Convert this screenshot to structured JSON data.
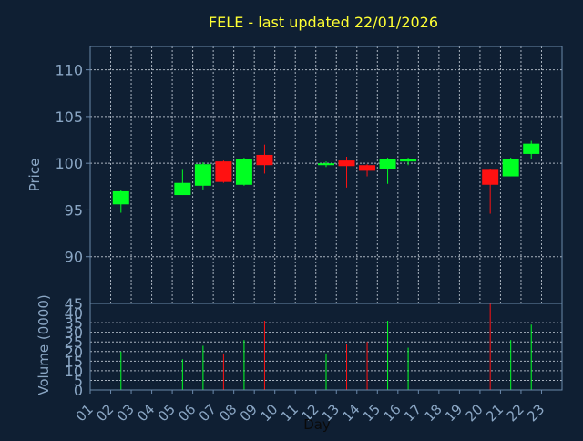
{
  "title": "FELE - last updated 22/01/2026",
  "colors": {
    "background": "#0f1f33",
    "axis": "#6a88aa",
    "text": "#8aa6c4",
    "title": "#ffff33",
    "grid": "#aab4c0",
    "up": "#00ff22",
    "down": "#ff1111",
    "day_label": "#0a0a0a"
  },
  "chart_data": [
    {
      "type": "candlestick",
      "ylabel": "Price",
      "ylim": [
        85,
        112.5
      ],
      "yticks": [
        90,
        95,
        100,
        105,
        110
      ],
      "grid": true,
      "x": [
        "02",
        "05",
        "06",
        "07",
        "08",
        "09",
        "12",
        "13",
        "14",
        "15",
        "16",
        "20",
        "21",
        "22"
      ],
      "candles": [
        {
          "day": "02",
          "open": 95.6,
          "high": 97.1,
          "low": 94.7,
          "close": 97.0
        },
        {
          "day": "05",
          "open": 96.6,
          "high": 99.3,
          "low": 96.6,
          "close": 97.9
        },
        {
          "day": "06",
          "open": 97.6,
          "high": 100.1,
          "low": 97.2,
          "close": 99.9
        },
        {
          "day": "07",
          "open": 100.2,
          "high": 100.3,
          "low": 97.9,
          "close": 98.0
        },
        {
          "day": "08",
          "open": 97.7,
          "high": 100.6,
          "low": 97.6,
          "close": 100.5
        },
        {
          "day": "09",
          "open": 100.9,
          "high": 102.0,
          "low": 98.9,
          "close": 99.8
        },
        {
          "day": "12",
          "open": 99.8,
          "high": 100.2,
          "low": 99.6,
          "close": 100.0
        },
        {
          "day": "13",
          "open": 100.3,
          "high": 100.7,
          "low": 97.4,
          "close": 99.7
        },
        {
          "day": "14",
          "open": 99.8,
          "high": 99.9,
          "low": 98.6,
          "close": 99.2
        },
        {
          "day": "15",
          "open": 99.4,
          "high": 100.6,
          "low": 97.8,
          "close": 100.5
        },
        {
          "day": "16",
          "open": 100.2,
          "high": 100.6,
          "low": 99.8,
          "close": 100.5
        },
        {
          "day": "20",
          "open": 99.3,
          "high": 99.4,
          "low": 94.6,
          "close": 97.7
        },
        {
          "day": "21",
          "open": 98.6,
          "high": 100.6,
          "low": 98.6,
          "close": 100.5
        },
        {
          "day": "22",
          "open": 101.0,
          "high": 102.4,
          "low": 100.5,
          "close": 102.1
        }
      ]
    },
    {
      "type": "bar",
      "ylabel": "Volume (0000)",
      "xlabel": "Day",
      "ylim": [
        0,
        45
      ],
      "yticks": [
        0,
        5,
        10,
        15,
        20,
        25,
        30,
        35,
        40,
        45
      ],
      "grid": true,
      "categories": [
        "01",
        "02",
        "03",
        "04",
        "05",
        "06",
        "07",
        "08",
        "09",
        "10",
        "11",
        "12",
        "13",
        "14",
        "15",
        "16",
        "17",
        "18",
        "19",
        "20",
        "21",
        "22",
        "23"
      ],
      "bars": [
        {
          "day": "02",
          "value": 20,
          "direction": "up"
        },
        {
          "day": "05",
          "value": 16,
          "direction": "up"
        },
        {
          "day": "06",
          "value": 23,
          "direction": "up"
        },
        {
          "day": "07",
          "value": 19,
          "direction": "down"
        },
        {
          "day": "08",
          "value": 26,
          "direction": "up"
        },
        {
          "day": "09",
          "value": 36,
          "direction": "down"
        },
        {
          "day": "12",
          "value": 19,
          "direction": "up"
        },
        {
          "day": "13",
          "value": 24,
          "direction": "down"
        },
        {
          "day": "14",
          "value": 25,
          "direction": "down"
        },
        {
          "day": "15",
          "value": 36,
          "direction": "up"
        },
        {
          "day": "16",
          "value": 22,
          "direction": "up"
        },
        {
          "day": "20",
          "value": 45,
          "direction": "down"
        },
        {
          "day": "21",
          "value": 26,
          "direction": "up"
        },
        {
          "day": "22",
          "value": 34,
          "direction": "up"
        }
      ]
    }
  ]
}
